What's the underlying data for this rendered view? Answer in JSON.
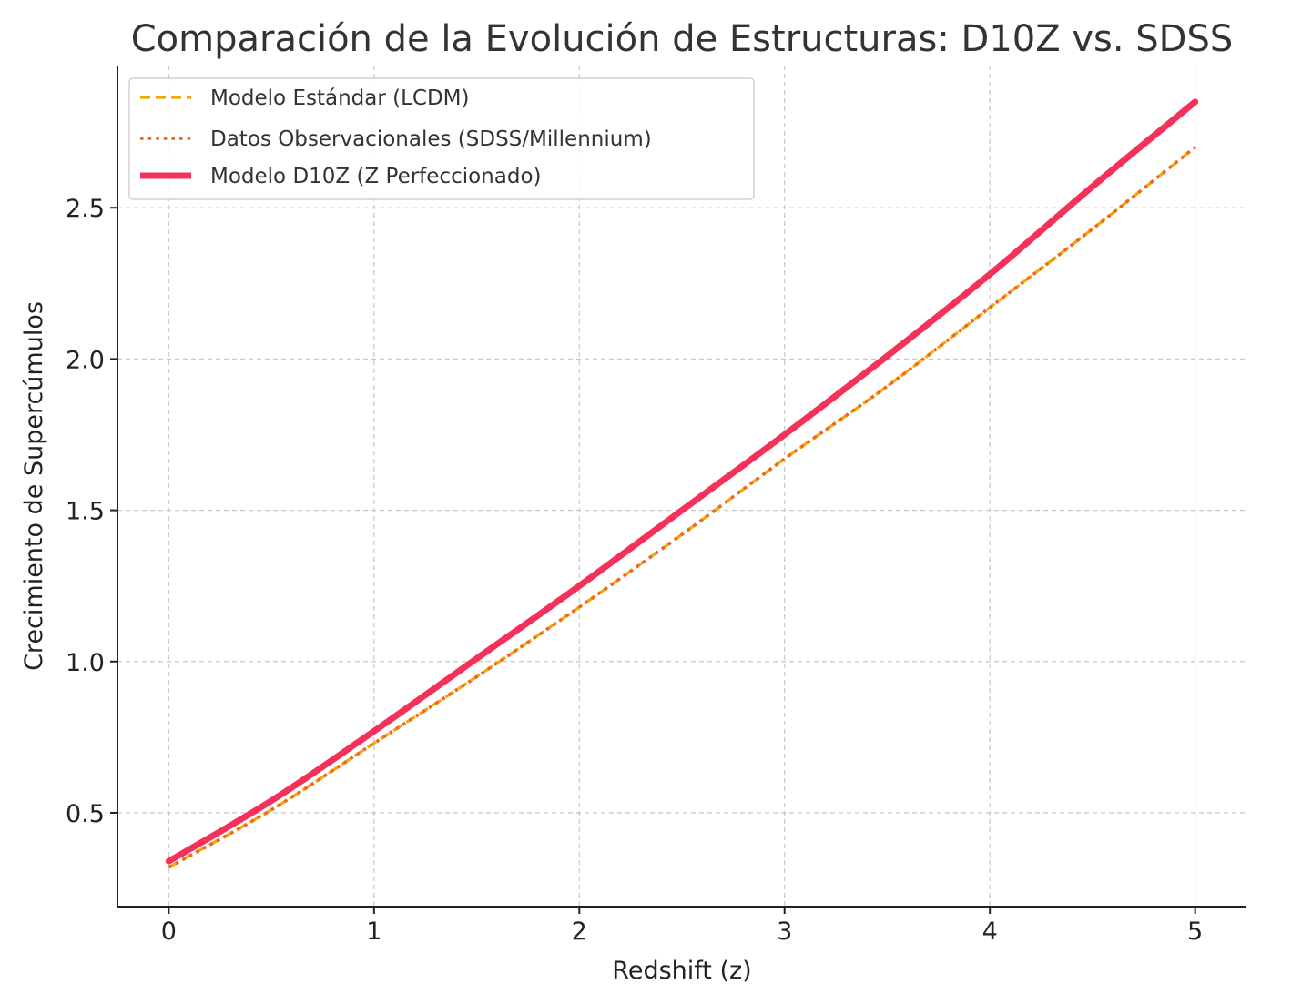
{
  "chart_data": {
    "type": "line",
    "title": "Comparación de la Evolución de Estructuras: D10Z vs. SDSS",
    "xlabel": "Redshift (z)",
    "ylabel": "Crecimiento de Supercúmulos",
    "xlim": [
      -0.25,
      5.25
    ],
    "ylim": [
      0.19,
      2.97
    ],
    "x_ticks": [
      0,
      1,
      2,
      3,
      4,
      5
    ],
    "x_tick_labels": [
      "0",
      "1",
      "2",
      "3",
      "4",
      "5"
    ],
    "y_ticks": [
      0.5,
      1.0,
      1.5,
      2.0,
      2.5
    ],
    "y_tick_labels": [
      "0.5",
      "1.0",
      "1.5",
      "2.0",
      "2.5"
    ],
    "grid": true,
    "legend_position": "top-left",
    "x": [
      0,
      0.5,
      1,
      1.5,
      2,
      2.5,
      3,
      3.5,
      4,
      4.5,
      5
    ],
    "series": [
      {
        "name": "Modelo Estándar (LCDM)",
        "style": "dashed",
        "color": "#f2a900",
        "values": [
          0.32,
          0.51,
          0.73,
          0.95,
          1.18,
          1.42,
          1.67,
          1.91,
          2.17,
          2.43,
          2.7
        ]
      },
      {
        "name": "Datos Observacionales (SDSS/Millennium)",
        "style": "dotted",
        "color": "#f26522",
        "values": [
          0.32,
          0.51,
          0.73,
          0.95,
          1.18,
          1.42,
          1.67,
          1.91,
          2.17,
          2.43,
          2.7
        ]
      },
      {
        "name": "Modelo D10Z (Z Perfeccionado)",
        "style": "solid",
        "color": "#f5315a",
        "values": [
          0.34,
          0.54,
          0.77,
          1.01,
          1.25,
          1.5,
          1.75,
          2.01,
          2.28,
          2.57,
          2.85
        ]
      }
    ]
  }
}
